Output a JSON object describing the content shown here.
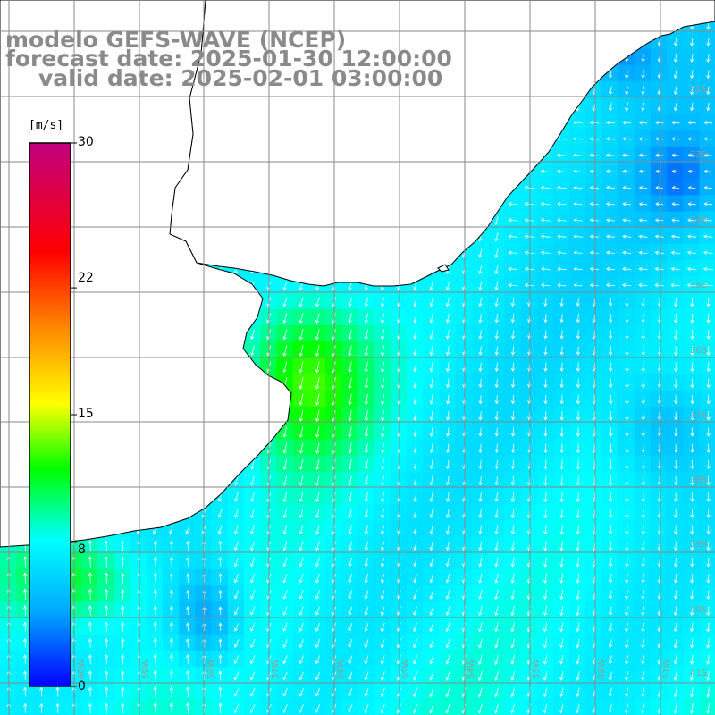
{
  "title": {
    "line1": "modelo GEFS-WAVE (NCEP)",
    "line2": "forecast date: 2025-01-30 12:00:00",
    "line3": "valid date: 2025-02-01 03:00:00"
  },
  "colorbar": {
    "unit": "[m/s]",
    "ticks": [
      "30",
      "22",
      "15",
      "8",
      "0"
    ],
    "tick_values": [
      30,
      22,
      15,
      8,
      0
    ],
    "min": 0,
    "max": 30,
    "colors": [
      "#0000ff",
      "#00aaff",
      "#00ffff",
      "#00ff00",
      "#ffff00",
      "#ff8800",
      "#ff0000",
      "#c00080"
    ]
  },
  "lat_labels": [
    "32S",
    "33S",
    "34S",
    "35S",
    "36S",
    "37S",
    "38S",
    "39S",
    "40S",
    "41S"
  ],
  "lon_labels": [
    "60W",
    "59W",
    "58W",
    "57W",
    "56W",
    "55W",
    "54W",
    "53W",
    "52W",
    "51W"
  ],
  "colors": {
    "land": "#ffffff",
    "coastline": "#000000",
    "grid": "#888888",
    "title": "#8a8a8a",
    "arrows": "#ffffff"
  }
}
